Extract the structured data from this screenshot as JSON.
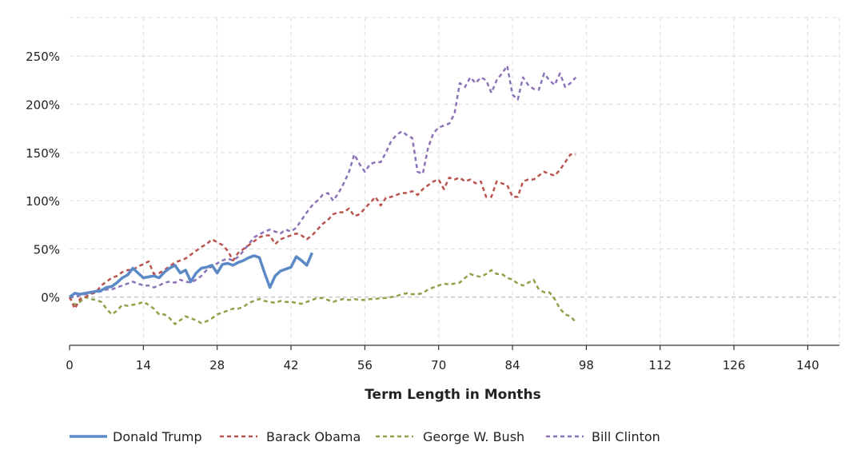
{
  "chart_data": {
    "type": "line",
    "xlabel": "Term Length in Months",
    "ylabel": "",
    "xlim": [
      0,
      146
    ],
    "ylim": [
      -50,
      290
    ],
    "x_ticks": [
      0,
      14,
      28,
      42,
      56,
      70,
      84,
      98,
      112,
      126,
      140
    ],
    "x_tick_labels": [
      "0",
      "14",
      "28",
      "42",
      "56",
      "70",
      "84",
      "98",
      "112",
      "126",
      "140"
    ],
    "y_ticks": [
      0,
      50,
      100,
      150,
      200,
      250
    ],
    "y_tick_labels": [
      "0%",
      "50%",
      "100%",
      "150%",
      "200%",
      "250%"
    ],
    "grid": true,
    "legend_position": "bottom",
    "series": [
      {
        "name": "Donald Trump",
        "color": "#5b8ac6",
        "style": "solid",
        "x": [
          0,
          1,
          2,
          3,
          4,
          5,
          6,
          7,
          8,
          9,
          10,
          11,
          12,
          13,
          14,
          15,
          16,
          17,
          18,
          19,
          20,
          21,
          22,
          23,
          24,
          25,
          26,
          27,
          28,
          29,
          30,
          31,
          32,
          33,
          34,
          35,
          36,
          37,
          38,
          39,
          40,
          41,
          42,
          43,
          44,
          45,
          46
        ],
        "y": [
          0,
          4,
          3,
          4,
          5,
          6,
          7,
          10,
          11,
          15,
          20,
          23,
          30,
          25,
          20,
          21,
          22,
          20,
          26,
          30,
          33,
          25,
          28,
          16,
          25,
          30,
          31,
          33,
          25,
          34,
          35,
          33,
          36,
          38,
          41,
          43,
          41,
          25,
          10,
          22,
          27,
          29,
          31,
          42,
          38,
          33,
          46
        ]
      },
      {
        "name": "Barack Obama",
        "color": "#b9534e",
        "style": "dashed",
        "x": [
          0,
          1,
          2,
          3,
          4,
          5,
          6,
          7,
          8,
          9,
          10,
          11,
          12,
          13,
          14,
          15,
          16,
          17,
          18,
          19,
          20,
          21,
          22,
          23,
          24,
          25,
          26,
          27,
          28,
          29,
          30,
          31,
          32,
          33,
          34,
          35,
          36,
          37,
          38,
          39,
          40,
          41,
          42,
          43,
          44,
          45,
          46,
          47,
          48,
          49,
          50,
          51,
          52,
          53,
          54,
          55,
          56,
          57,
          58,
          59,
          60,
          61,
          62,
          63,
          64,
          65,
          66,
          67,
          68,
          69,
          70,
          71,
          72,
          73,
          74,
          75,
          76,
          77,
          78,
          79,
          80,
          81,
          82,
          83,
          84,
          85,
          86,
          87,
          88,
          89,
          90,
          91,
          92,
          93,
          94,
          95,
          96
        ],
        "y": [
          0,
          -12,
          -2,
          0,
          3,
          5,
          12,
          16,
          20,
          22,
          26,
          28,
          28,
          32,
          34,
          37,
          24,
          25,
          28,
          32,
          36,
          38,
          40,
          44,
          48,
          52,
          55,
          60,
          57,
          54,
          48,
          38,
          46,
          50,
          54,
          58,
          62,
          64,
          64,
          55,
          60,
          62,
          64,
          66,
          64,
          60,
          64,
          70,
          76,
          80,
          86,
          88,
          88,
          92,
          84,
          86,
          92,
          98,
          104,
          95,
          103,
          104,
          106,
          108,
          108,
          110,
          106,
          112,
          116,
          120,
          122,
          112,
          124,
          122,
          124,
          120,
          122,
          118,
          120,
          104,
          104,
          120,
          118,
          116,
          104,
          104,
          120,
          122,
          122,
          126,
          130,
          128,
          126,
          132,
          140,
          148,
          148
        ]
      },
      {
        "name": "George W. Bush",
        "color": "#8fa24a",
        "style": "dashed",
        "x": [
          0,
          1,
          2,
          3,
          4,
          5,
          6,
          7,
          8,
          9,
          10,
          11,
          12,
          13,
          14,
          15,
          16,
          17,
          18,
          19,
          20,
          21,
          22,
          23,
          24,
          25,
          26,
          27,
          28,
          29,
          30,
          31,
          32,
          33,
          34,
          35,
          36,
          37,
          38,
          39,
          40,
          41,
          42,
          43,
          44,
          45,
          46,
          47,
          48,
          49,
          50,
          51,
          52,
          53,
          54,
          55,
          56,
          57,
          58,
          59,
          60,
          61,
          62,
          63,
          64,
          65,
          66,
          67,
          68,
          69,
          70,
          71,
          72,
          73,
          74,
          75,
          76,
          77,
          78,
          79,
          80,
          81,
          82,
          83,
          84,
          85,
          86,
          87,
          88,
          89,
          90,
          91,
          92,
          93,
          94,
          95,
          96
        ],
        "y": [
          0,
          -8,
          -5,
          0,
          -2,
          -3,
          -5,
          -12,
          -18,
          -14,
          -8,
          -9,
          -8,
          -7,
          -5,
          -8,
          -12,
          -18,
          -18,
          -22,
          -28,
          -24,
          -20,
          -22,
          -24,
          -27,
          -25,
          -22,
          -18,
          -16,
          -14,
          -12,
          -12,
          -10,
          -6,
          -4,
          -2,
          -4,
          -5,
          -6,
          -4,
          -5,
          -5,
          -6,
          -7,
          -5,
          -3,
          -1,
          -1,
          -3,
          -5,
          -3,
          -2,
          -3,
          -2,
          -3,
          -3,
          -2,
          -2,
          -1,
          -1,
          0,
          1,
          3,
          4,
          3,
          3,
          4,
          8,
          10,
          12,
          14,
          13,
          14,
          15,
          20,
          24,
          22,
          21,
          24,
          28,
          24,
          24,
          20,
          18,
          14,
          12,
          15,
          18,
          8,
          5,
          5,
          -2,
          -12,
          -18,
          -20,
          -26
        ]
      },
      {
        "name": "Bill Clinton",
        "color": "#8c73b8",
        "style": "dashed",
        "x": [
          0,
          1,
          2,
          3,
          4,
          5,
          6,
          7,
          8,
          9,
          10,
          11,
          12,
          13,
          14,
          15,
          16,
          17,
          18,
          19,
          20,
          21,
          22,
          23,
          24,
          25,
          26,
          27,
          28,
          29,
          30,
          31,
          32,
          33,
          34,
          35,
          36,
          37,
          38,
          39,
          40,
          41,
          42,
          43,
          44,
          45,
          46,
          47,
          48,
          49,
          50,
          51,
          52,
          53,
          54,
          55,
          56,
          57,
          58,
          59,
          60,
          61,
          62,
          63,
          64,
          65,
          66,
          67,
          68,
          69,
          70,
          71,
          72,
          73,
          74,
          75,
          76,
          77,
          78,
          79,
          80,
          81,
          82,
          83,
          84,
          85,
          86,
          87,
          88,
          89,
          90,
          91,
          92,
          93,
          94,
          95,
          96
        ],
        "y": [
          0,
          0,
          2,
          3,
          4,
          5,
          6,
          8,
          8,
          10,
          12,
          14,
          16,
          14,
          12,
          12,
          10,
          12,
          15,
          16,
          15,
          18,
          16,
          15,
          18,
          22,
          28,
          32,
          35,
          38,
          40,
          38,
          42,
          48,
          55,
          62,
          65,
          68,
          70,
          68,
          66,
          70,
          68,
          72,
          80,
          88,
          95,
          100,
          106,
          108,
          100,
          108,
          118,
          130,
          148,
          138,
          130,
          138,
          140,
          140,
          150,
          162,
          168,
          172,
          168,
          165,
          130,
          128,
          155,
          170,
          176,
          178,
          180,
          190,
          222,
          218,
          228,
          222,
          228,
          225,
          212,
          225,
          232,
          240,
          210,
          205,
          228,
          220,
          216,
          215,
          232,
          225,
          220,
          232,
          218,
          222,
          228
        ]
      }
    ]
  }
}
